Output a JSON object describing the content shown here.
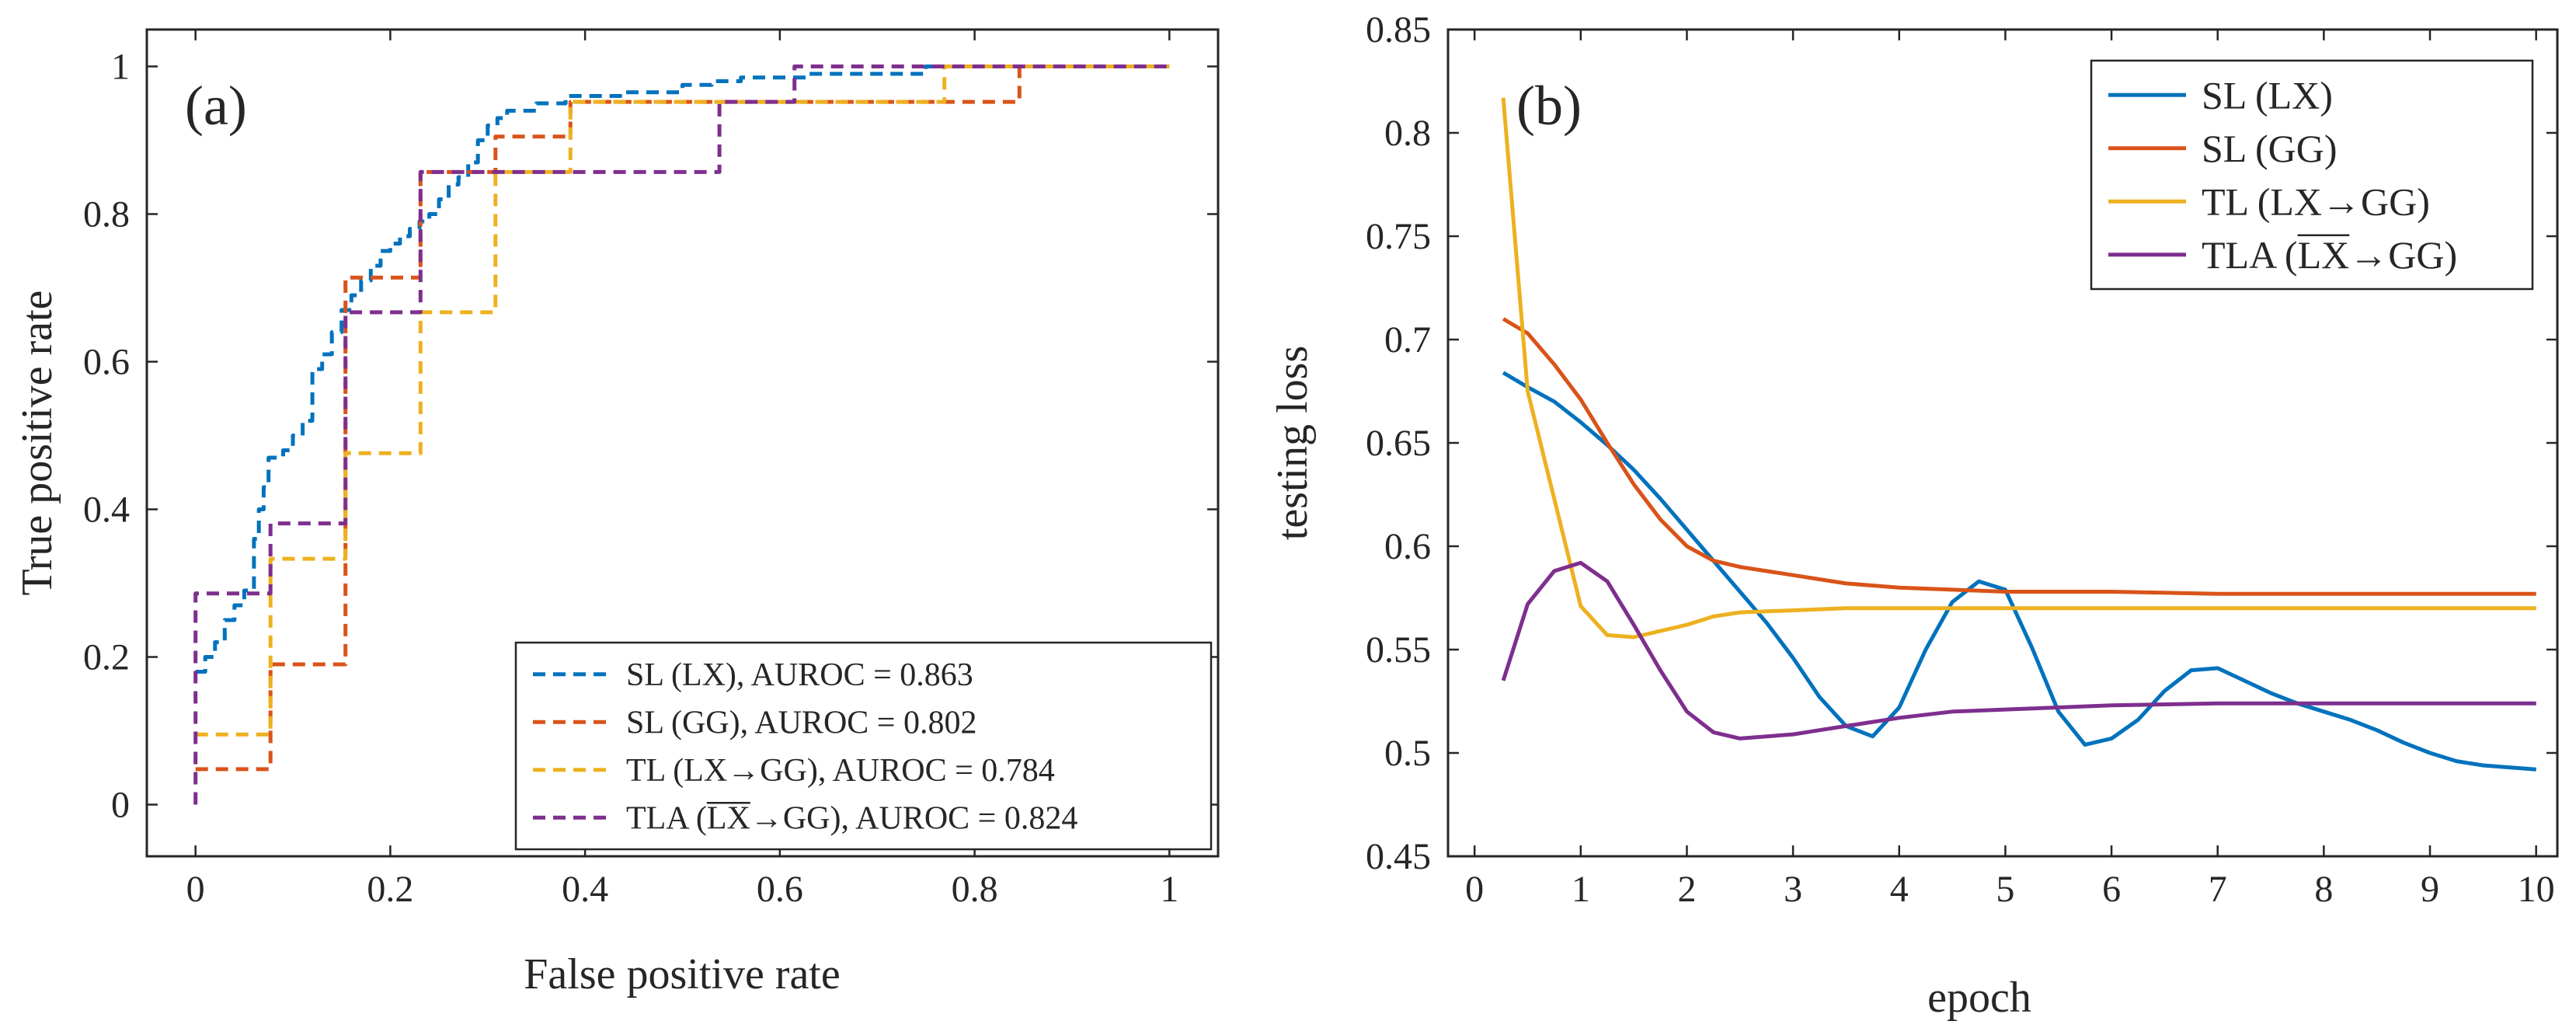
{
  "chart_data": [
    {
      "type": "line",
      "panel_label": "(a)",
      "xlabel": "False positive rate",
      "ylabel": "True positive rate",
      "xlim": [
        -0.05,
        1.05
      ],
      "ylim": [
        -0.07,
        1.05
      ],
      "xticks": [
        0,
        0.2,
        0.4,
        0.6,
        0.8,
        1
      ],
      "xtick_labels": [
        "0",
        "0.2",
        "0.4",
        "0.6",
        "0.8",
        "1"
      ],
      "yticks": [
        0,
        0.2,
        0.4,
        0.6,
        0.8,
        1
      ],
      "ytick_labels": [
        "0",
        "0.2",
        "0.4",
        "0.6",
        "0.8",
        "1"
      ],
      "grid": false,
      "legend_position": "bottom-right",
      "line_style": "dashed",
      "series": [
        {
          "name": "SL (LX), AUROC = 0.863",
          "label_main": "SL (LX), AUROC = 0.863",
          "color": "#0072BD",
          "x": [
            0,
            0.01,
            0.01,
            0.02,
            0.02,
            0.03,
            0.03,
            0.04,
            0.04,
            0.05,
            0.05,
            0.06,
            0.06,
            0.065,
            0.065,
            0.07,
            0.07,
            0.075,
            0.075,
            0.09,
            0.09,
            0.1,
            0.1,
            0.11,
            0.11,
            0.12,
            0.12,
            0.13,
            0.13,
            0.14,
            0.14,
            0.15,
            0.15,
            0.16,
            0.16,
            0.17,
            0.17,
            0.18,
            0.18,
            0.19,
            0.19,
            0.2,
            0.2,
            0.21,
            0.21,
            0.22,
            0.22,
            0.23,
            0.23,
            0.24,
            0.24,
            0.25,
            0.25,
            0.26,
            0.26,
            0.27,
            0.27,
            0.28,
            0.28,
            0.29,
            0.29,
            0.3,
            0.3,
            0.31,
            0.31,
            0.32,
            0.32,
            0.35,
            0.35,
            0.38,
            0.38,
            0.4,
            0.4,
            0.44,
            0.44,
            0.5,
            0.5,
            0.53,
            0.53,
            0.56,
            0.56,
            0.6,
            0.6,
            0.63,
            0.63,
            0.75,
            0.75,
            1.0
          ],
          "y": [
            0.18,
            0.18,
            0.2,
            0.2,
            0.22,
            0.22,
            0.25,
            0.25,
            0.27,
            0.27,
            0.29,
            0.29,
            0.36,
            0.36,
            0.4,
            0.4,
            0.43,
            0.43,
            0.47,
            0.47,
            0.48,
            0.48,
            0.5,
            0.5,
            0.52,
            0.52,
            0.59,
            0.59,
            0.61,
            0.61,
            0.64,
            0.64,
            0.67,
            0.67,
            0.69,
            0.69,
            0.71,
            0.71,
            0.73,
            0.73,
            0.75,
            0.75,
            0.76,
            0.76,
            0.77,
            0.77,
            0.78,
            0.78,
            0.79,
            0.79,
            0.8,
            0.8,
            0.82,
            0.82,
            0.84,
            0.84,
            0.85,
            0.85,
            0.87,
            0.87,
            0.9,
            0.9,
            0.92,
            0.92,
            0.93,
            0.93,
            0.94,
            0.94,
            0.95,
            0.95,
            0.96,
            0.96,
            0.96,
            0.96,
            0.965,
            0.965,
            0.975,
            0.975,
            0.98,
            0.98,
            0.985,
            0.985,
            0.985,
            0.985,
            0.99,
            0.99,
            1.0,
            1.0
          ]
        },
        {
          "name": "SL (GG), AUROC = 0.802",
          "label_main": "SL (GG), AUROC = 0.802",
          "color": "#D95319",
          "x": [
            0,
            0.077,
            0.077,
            0.154,
            0.154,
            0.231,
            0.231,
            0.308,
            0.308,
            0.385,
            0.385,
            0.846,
            0.846,
            1.0
          ],
          "y": [
            0.048,
            0.048,
            0.19,
            0.19,
            0.714,
            0.714,
            0.857,
            0.857,
            0.905,
            0.905,
            0.952,
            0.952,
            1.0,
            1.0
          ]
        },
        {
          "name": "TL (LX→GG), AUROC = 0.784",
          "label_main": "TL (LX→GG), AUROC = 0.784",
          "color": "#EDB120",
          "x": [
            0,
            0.077,
            0.077,
            0.154,
            0.154,
            0.231,
            0.231,
            0.308,
            0.308,
            0.385,
            0.385,
            0.769,
            0.769,
            1.0
          ],
          "y": [
            0.095,
            0.095,
            0.333,
            0.333,
            0.476,
            0.476,
            0.667,
            0.667,
            0.857,
            0.857,
            0.952,
            0.952,
            1.0,
            1.0
          ]
        },
        {
          "name": "TLA (LX→GG), AUROC = 0.824",
          "label_main": "TLA (LX→GG), AUROC = 0.824",
          "label_prefix": "TLA (",
          "label_over": "LX",
          "label_suffix": "→GG), AUROC = 0.824",
          "color": "#7E2F8E",
          "x": [
            0,
            0,
            0.077,
            0.077,
            0.154,
            0.154,
            0.231,
            0.231,
            0.538,
            0.538,
            0.615,
            0.615,
            1.0
          ],
          "y": [
            0,
            0.286,
            0.286,
            0.381,
            0.381,
            0.667,
            0.667,
            0.857,
            0.857,
            0.952,
            0.952,
            1.0,
            1.0
          ]
        }
      ]
    },
    {
      "type": "line",
      "panel_label": "(b)",
      "xlabel": "epoch",
      "ylabel": "testing loss",
      "xlim": [
        -0.25,
        10.2
      ],
      "ylim": [
        0.45,
        0.85
      ],
      "xticks": [
        0,
        1,
        2,
        3,
        4,
        5,
        6,
        7,
        8,
        9,
        10
      ],
      "xtick_labels": [
        "0",
        "1",
        "2",
        "3",
        "4",
        "5",
        "6",
        "7",
        "8",
        "9",
        "10"
      ],
      "yticks": [
        0.45,
        0.5,
        0.55,
        0.6,
        0.65,
        0.7,
        0.75,
        0.8,
        0.85
      ],
      "ytick_labels": [
        "0.45",
        "0.5",
        "0.55",
        "0.6",
        "0.65",
        "0.7",
        "0.75",
        "0.8",
        "0.85"
      ],
      "grid": false,
      "legend_position": "top-right",
      "line_style": "solid",
      "series": [
        {
          "name": "SL (LX)",
          "label_main": "SL (LX)",
          "color": "#0072BD",
          "x": [
            0.27,
            0.5,
            0.75,
            1.0,
            1.25,
            1.5,
            1.75,
            2.0,
            2.25,
            2.5,
            2.75,
            3.0,
            3.25,
            3.5,
            3.75,
            4.0,
            4.25,
            4.5,
            4.75,
            5.0,
            5.25,
            5.5,
            5.75,
            6.0,
            6.25,
            6.5,
            6.75,
            7.0,
            7.25,
            7.5,
            7.75,
            8.0,
            8.25,
            8.5,
            8.75,
            9.0,
            9.25,
            9.5,
            9.75,
            10.0
          ],
          "y": [
            0.684,
            0.677,
            0.67,
            0.66,
            0.649,
            0.637,
            0.623,
            0.608,
            0.593,
            0.578,
            0.563,
            0.546,
            0.527,
            0.513,
            0.508,
            0.522,
            0.55,
            0.573,
            0.583,
            0.579,
            0.551,
            0.52,
            0.504,
            0.507,
            0.516,
            0.53,
            0.54,
            0.541,
            0.535,
            0.529,
            0.524,
            0.52,
            0.516,
            0.511,
            0.505,
            0.5,
            0.496,
            0.494,
            0.493,
            0.492
          ]
        },
        {
          "name": "SL (GG)",
          "label_main": "SL (GG)",
          "color": "#D95319",
          "x": [
            0.27,
            0.5,
            0.75,
            1.0,
            1.25,
            1.5,
            1.75,
            2.0,
            2.25,
            2.5,
            3.0,
            3.5,
            4.0,
            4.5,
            5.0,
            6.0,
            7.0,
            8.0,
            9.0,
            10.0
          ],
          "y": [
            0.71,
            0.703,
            0.688,
            0.671,
            0.65,
            0.63,
            0.613,
            0.6,
            0.593,
            0.59,
            0.586,
            0.582,
            0.58,
            0.579,
            0.578,
            0.578,
            0.577,
            0.577,
            0.577,
            0.577
          ]
        },
        {
          "name": "TL (LX→GG)",
          "label_main": "TL (LX→GG)",
          "color": "#EDB120",
          "x": [
            0.27,
            0.5,
            0.75,
            1.0,
            1.25,
            1.5,
            1.75,
            2.0,
            2.25,
            2.5,
            3.0,
            3.5,
            4.0,
            5.0,
            6.0,
            7.0,
            8.0,
            9.0,
            10.0
          ],
          "y": [
            0.817,
            0.675,
            0.623,
            0.571,
            0.557,
            0.556,
            0.559,
            0.562,
            0.566,
            0.568,
            0.569,
            0.57,
            0.57,
            0.57,
            0.57,
            0.57,
            0.57,
            0.57,
            0.57
          ]
        },
        {
          "name": "TLA (LX→GG)",
          "label_main": "TLA (LX→GG)",
          "label_prefix": "TLA (",
          "label_over": "LX",
          "label_suffix": "→GG)",
          "color": "#7E2F8E",
          "x": [
            0.27,
            0.5,
            0.75,
            1.0,
            1.25,
            1.5,
            1.75,
            2.0,
            2.25,
            2.5,
            2.75,
            3.0,
            3.25,
            3.5,
            3.75,
            4.0,
            4.5,
            5.0,
            6.0,
            7.0,
            8.0,
            9.0,
            10.0
          ],
          "y": [
            0.535,
            0.572,
            0.588,
            0.592,
            0.583,
            0.562,
            0.54,
            0.52,
            0.51,
            0.507,
            0.508,
            0.509,
            0.511,
            0.513,
            0.515,
            0.517,
            0.52,
            0.521,
            0.523,
            0.524,
            0.524,
            0.524,
            0.524
          ]
        }
      ]
    }
  ]
}
